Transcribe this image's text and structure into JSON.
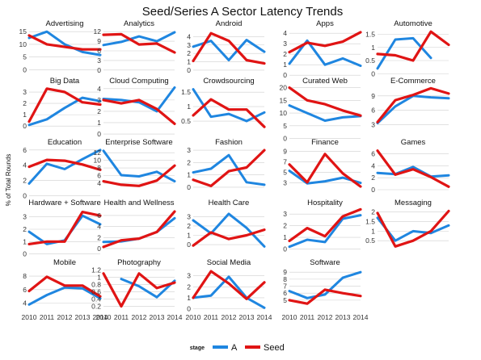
{
  "colors": {
    "A": "#1f86e0",
    "Seed": "#e01414",
    "grid": "#cfcfcf"
  },
  "chart_data": {
    "type": "line",
    "title": "Seed/Series A Sector Latency Trends",
    "ylabel": "% of Total Rounds",
    "x": [
      "2010",
      "2011",
      "2012",
      "2013",
      "2014"
    ],
    "legend": {
      "title": "stage",
      "position": "bottom",
      "entries": [
        "A",
        "Seed"
      ]
    },
    "grid": true,
    "panels": [
      {
        "name": "Advertising",
        "yticks": [
          0,
          5,
          10,
          15
        ],
        "ylim": [
          -0.5,
          16
        ],
        "series": [
          {
            "name": "A",
            "values": [
              12.5,
              15,
              10,
              7,
              5.8
            ]
          },
          {
            "name": "Seed",
            "values": [
              13.5,
              10,
              9,
              8,
              8
            ]
          }
        ]
      },
      {
        "name": "Analytics",
        "yticks": [
          0,
          3,
          6,
          9,
          12
        ],
        "ylim": [
          -0.3,
          12.8
        ],
        "series": [
          {
            "name": "A",
            "values": [
              7.8,
              8.8,
              10.5,
              9,
              11.8
            ]
          },
          {
            "name": "Seed",
            "values": [
              11,
              11.2,
              8,
              8.3,
              5.5
            ]
          }
        ]
      },
      {
        "name": "Android",
        "yticks": [
          0,
          1,
          2,
          3,
          4
        ],
        "ylim": [
          -0.1,
          4.9
        ],
        "series": [
          {
            "name": "A",
            "values": [
              2.8,
              3.5,
              1.2,
              3.6,
              2.2
            ]
          },
          {
            "name": "Seed",
            "values": [
              1.1,
              4.4,
              3.5,
              1.2,
              0.8
            ]
          }
        ]
      },
      {
        "name": "Apps",
        "yticks": [
          0,
          1,
          2,
          3,
          4
        ],
        "ylim": [
          0.4,
          4.4
        ],
        "series": [
          {
            "name": "A",
            "values": [
              1.1,
              3.3,
              1,
              1.6,
              0.9
            ]
          },
          {
            "name": "Seed",
            "values": [
              2.2,
              3.1,
              2.8,
              3.2,
              4.1
            ]
          }
        ]
      },
      {
        "name": "Automotive",
        "yticks": [
          0,
          0.5,
          1,
          1.5
        ],
        "ylim": [
          0.1,
          1.7
        ],
        "series": [
          {
            "name": "A",
            "values": [
              0.2,
              1.3,
              1.35,
              0.6,
              null
            ]
          },
          {
            "name": "Seed",
            "values": [
              0.75,
              0.7,
              0.5,
              1.6,
              1.1
            ]
          }
        ]
      },
      {
        "name": "Big Data",
        "yticks": [
          0,
          1,
          2,
          3
        ],
        "ylim": [
          -0.2,
          3.5
        ],
        "series": [
          {
            "name": "A",
            "values": [
              0.1,
              0.6,
              1.6,
              2.5,
              2.2
            ]
          },
          {
            "name": "Seed",
            "values": [
              0.4,
              3.3,
              3,
              2.1,
              1.9
            ]
          }
        ]
      },
      {
        "name": "Cloud Computing",
        "yticks": [
          0,
          1,
          2,
          3,
          4
        ],
        "ylim": [
          0.5,
          4.2
        ],
        "series": [
          {
            "name": "A",
            "values": [
              3.1,
              3,
              2.8,
              2,
              4.1
            ]
          },
          {
            "name": "Seed",
            "values": [
              3,
              2.7,
              3,
              2.2,
              0.9
            ]
          }
        ]
      },
      {
        "name": "Crowdsourcing",
        "yticks": [
          0.5,
          1,
          1.5
        ],
        "ylim": [
          0.25,
          1.7
        ],
        "series": [
          {
            "name": "A",
            "values": [
              1.6,
              0.65,
              0.75,
              0.5,
              0.8
            ]
          },
          {
            "name": "Seed",
            "values": [
              0.7,
              1.25,
              0.9,
              0.9,
              0.3
            ]
          }
        ]
      },
      {
        "name": "Curated Web",
        "yticks": [
          0,
          5,
          10,
          15,
          20
        ],
        "ylim": [
          4,
          20.5
        ],
        "series": [
          {
            "name": "A",
            "values": [
              13,
              10,
              7,
              8.3,
              8.8
            ]
          },
          {
            "name": "Seed",
            "values": [
              20,
              15,
              13.5,
              11,
              9
            ]
          }
        ]
      },
      {
        "name": "E-Commerce",
        "yticks": [
          3,
          6,
          9
        ],
        "ylim": [
          2.2,
          11
        ],
        "series": [
          {
            "name": "A",
            "values": [
              3.3,
              6.8,
              9,
              8.7,
              8.5
            ]
          },
          {
            "name": "Seed",
            "values": [
              3.5,
              8.1,
              9.2,
              10.6,
              9.5
            ]
          }
        ]
      },
      {
        "name": "Education",
        "yticks": [
          0,
          2,
          4,
          6
        ],
        "ylim": [
          0.8,
          6.3
        ],
        "series": [
          {
            "name": "A",
            "values": [
              1.6,
              4.2,
              3.5,
              4.8,
              6
            ]
          },
          {
            "name": "Seed",
            "values": [
              3.8,
              4.7,
              4.6,
              4.1,
              3.4
            ]
          }
        ]
      },
      {
        "name": "Enterprise Software",
        "yticks": [
          4,
          6,
          8,
          10,
          12
        ],
        "ylim": [
          2.3,
          13.3
        ],
        "series": [
          {
            "name": "A",
            "values": [
              12.5,
              6.1,
              5.8,
              7,
              4.5
            ]
          },
          {
            "name": "Seed",
            "values": [
              4.5,
              3.6,
              3.3,
              4.7,
              8.6
            ]
          }
        ]
      },
      {
        "name": "Fashion",
        "yticks": [
          0,
          1,
          2,
          3
        ],
        "ylim": [
          -0.2,
          3.2
        ],
        "series": [
          {
            "name": "A",
            "values": [
              1.2,
              1.5,
              2.6,
              0.4,
              0.2
            ]
          },
          {
            "name": "Seed",
            "values": [
              0.6,
              0.1,
              1.3,
              1.6,
              3
            ]
          }
        ]
      },
      {
        "name": "Finance",
        "yticks": [
          3,
          5,
          7,
          9
        ],
        "ylim": [
          1.7,
          9.7
        ],
        "series": [
          {
            "name": "A",
            "values": [
              5.3,
              2.9,
              3.3,
              4,
              3
            ]
          },
          {
            "name": "Seed",
            "values": [
              6.5,
              3.1,
              8.5,
              4.8,
              2.3
            ]
          }
        ]
      },
      {
        "name": "Games",
        "yticks": [
          0,
          2,
          4,
          6
        ],
        "ylim": [
          0,
          7
        ],
        "series": [
          {
            "name": "A",
            "values": [
              2.8,
              2.6,
              3.8,
              2.2,
              2.4
            ]
          },
          {
            "name": "Seed",
            "values": [
              6.5,
              2.5,
              3.4,
              2.1,
              0.5
            ]
          }
        ]
      },
      {
        "name": "Hardware + Software",
        "yticks": [
          0,
          1,
          2,
          3
        ],
        "ylim": [
          0.3,
          3.7
        ],
        "series": [
          {
            "name": "A",
            "values": [
              1.8,
              0.8,
              1.1,
              3.1,
              2.4
            ]
          },
          {
            "name": "Seed",
            "values": [
              0.8,
              1,
              1,
              3.4,
              3.1
            ]
          }
        ]
      },
      {
        "name": "Health and Wellness",
        "yticks": [
          0,
          2,
          4,
          6
        ],
        "ylim": [
          -0.3,
          7.3
        ],
        "series": [
          {
            "name": "A",
            "values": [
              1.2,
              1.3,
              1.8,
              3,
              5.5
            ]
          },
          {
            "name": "Seed",
            "values": [
              0.3,
              1.5,
              1.8,
              3,
              6.7
            ]
          }
        ]
      },
      {
        "name": "Health Care",
        "yticks": [
          0,
          1,
          2,
          3
        ],
        "ylim": [
          -0.6,
          3.9
        ],
        "series": [
          {
            "name": "A",
            "values": [
              2.6,
              1.2,
              3.3,
              1.8,
              -0.2
            ]
          },
          {
            "name": "Seed",
            "values": [
              -0.1,
              1.3,
              0.6,
              1,
              1.6
            ]
          }
        ]
      },
      {
        "name": "Hospitality",
        "yticks": [
          0,
          1,
          2,
          3
        ],
        "ylim": [
          -0.1,
          3.5
        ],
        "series": [
          {
            "name": "A",
            "values": [
              0.2,
              0.8,
              0.6,
              2.6,
              2.9
            ]
          },
          {
            "name": "Seed",
            "values": [
              0.7,
              1.8,
              1.1,
              2.8,
              3.4
            ]
          }
        ]
      },
      {
        "name": "Messaging",
        "yticks": [
          0.5,
          1,
          1.5,
          2
        ],
        "ylim": [
          0,
          2.2
        ],
        "series": [
          {
            "name": "A",
            "values": [
              1.7,
              0.5,
              1,
              0.9,
              1.3
            ]
          },
          {
            "name": "Seed",
            "values": [
              1.95,
              0.2,
              0.5,
              1,
              2.05
            ]
          }
        ]
      },
      {
        "name": "Mobile",
        "yticks": [
          4,
          6,
          8
        ],
        "ylim": [
          3,
          9.2
        ],
        "series": [
          {
            "name": "A",
            "values": [
              3.8,
              5.2,
              6.3,
              6.2,
              4.7
            ]
          },
          {
            "name": "Seed",
            "values": [
              5.8,
              7.9,
              6.6,
              6.6,
              5
            ]
          }
        ]
      },
      {
        "name": "Photography",
        "yticks": [
          0.2,
          0.4,
          0.6,
          0.8,
          1.0,
          1.2
        ],
        "ylim": [
          0.1,
          1.25
        ],
        "series": [
          {
            "name": "A",
            "values": [
              null,
              0.95,
              0.75,
              0.45,
              0.9
            ]
          },
          {
            "name": "Seed",
            "values": [
              1.1,
              0.2,
              1.1,
              0.7,
              0.85
            ]
          }
        ]
      },
      {
        "name": "Social Media",
        "yticks": [
          0,
          1,
          2,
          3
        ],
        "ylim": [
          -0.1,
          3.7
        ],
        "series": [
          {
            "name": "A",
            "values": [
              1,
              1.2,
              2.9,
              1,
              0.1
            ]
          },
          {
            "name": "Seed",
            "values": [
              1,
              3.4,
              2.3,
              0.9,
              2.4
            ]
          }
        ]
      },
      {
        "name": "Software",
        "yticks": [
          5,
          6,
          7,
          8,
          9
        ],
        "ylim": [
          3.6,
          9.6
        ],
        "series": [
          {
            "name": "A",
            "values": [
              6.3,
              5.3,
              5.8,
              8.2,
              9
            ]
          },
          {
            "name": "Seed",
            "values": [
              5,
              4.5,
              6.5,
              6,
              5.6
            ]
          }
        ]
      }
    ]
  }
}
